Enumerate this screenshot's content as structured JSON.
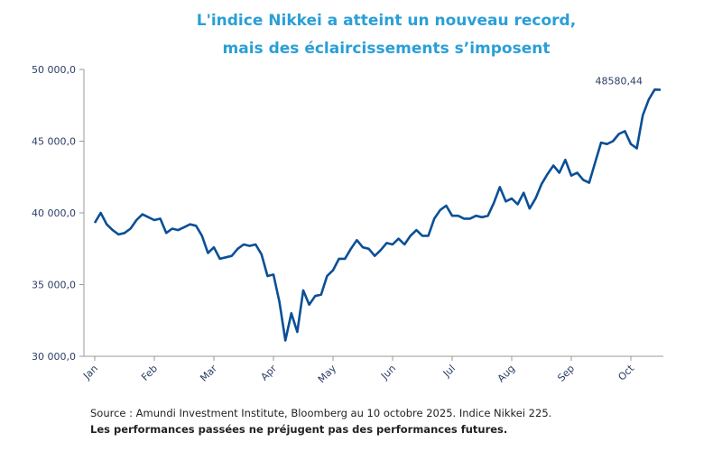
{
  "chart_data": {
    "type": "line",
    "title": [
      "L'indice Nikkei a atteint un nouveau record,",
      "mais des éclaircissements s’imposent"
    ],
    "source": "Source : Amundi Investment Institute, Bloomberg au 10 octobre 2025. Indice Nikkei 225.",
    "disclaimer": "Les performances passées ne préjugent pas des performances futures.",
    "categories": [
      "Jan",
      null,
      null,
      null,
      null,
      null,
      null,
      null,
      null,
      null,
      "Feb",
      null,
      null,
      null,
      null,
      null,
      null,
      null,
      null,
      null,
      "Mar",
      null,
      null,
      null,
      null,
      null,
      null,
      null,
      null,
      null,
      "Apr",
      null,
      null,
      null,
      null,
      null,
      null,
      null,
      null,
      null,
      "May",
      null,
      null,
      null,
      null,
      null,
      null,
      null,
      null,
      null,
      "Jun",
      null,
      null,
      null,
      null,
      null,
      null,
      null,
      null,
      null,
      "Jul",
      null,
      null,
      null,
      null,
      null,
      null,
      null,
      null,
      null,
      "Aug",
      null,
      null,
      null,
      null,
      null,
      null,
      null,
      null,
      null,
      "Sep",
      null,
      null,
      null,
      null,
      null,
      null,
      null,
      null,
      null,
      "Oct",
      null,
      null,
      null,
      null,
      null
    ],
    "series": [
      {
        "color": "#0a4f96",
        "values": [
          39300,
          40000,
          39200,
          38800,
          38500,
          38600,
          38900,
          39500,
          39900,
          39700,
          39500,
          39600,
          38600,
          38900,
          38800,
          39000,
          39200,
          39100,
          38400,
          37200,
          37600,
          36800,
          36900,
          37000,
          37500,
          37800,
          37700,
          37800,
          37100,
          35600,
          35700,
          33800,
          31100,
          33000,
          31700,
          34600,
          33600,
          34200,
          34300,
          35600,
          36000,
          36800,
          36800,
          37500,
          38100,
          37600,
          37500,
          37000,
          37400,
          37900,
          37800,
          38200,
          37800,
          38400,
          38800,
          38400,
          38400,
          39600,
          40200,
          40500,
          39800,
          39800,
          39600,
          39600,
          39800,
          39700,
          39800,
          40700,
          41800,
          40800,
          41000,
          40600,
          41400,
          40300,
          41000,
          42000,
          42700,
          43300,
          42800,
          43700,
          42600,
          42800,
          42300,
          42100,
          43500,
          44900,
          44800,
          45000,
          45500,
          45700,
          44800,
          44500,
          46800,
          47900,
          48600,
          48580.44
        ],
        "value_labels": [
          null,
          null,
          null,
          null,
          null,
          null,
          null,
          null,
          null,
          null,
          null,
          null,
          null,
          null,
          null,
          null,
          null,
          null,
          null,
          null,
          null,
          null,
          null,
          null,
          null,
          null,
          null,
          null,
          null,
          null,
          null,
          null,
          null,
          null,
          null,
          null,
          null,
          null,
          null,
          null,
          null,
          null,
          null,
          null,
          null,
          null,
          null,
          null,
          null,
          null,
          null,
          null,
          null,
          null,
          null,
          null,
          null,
          null,
          null,
          null,
          null,
          null,
          null,
          null,
          null,
          null,
          null,
          null,
          null,
          null,
          null,
          null,
          null,
          null,
          null,
          null,
          null,
          null,
          null,
          null,
          null,
          null,
          null,
          null,
          null,
          null,
          null,
          null,
          null,
          null,
          null,
          null,
          null,
          null,
          null,
          "48580,44"
        ]
      }
    ],
    "ylim": [
      30000,
      50000
    ],
    "yticks": [
      {
        "value": 30000,
        "label": "30 000,0"
      },
      {
        "value": 35000,
        "label": "35 000,0"
      },
      {
        "value": 40000,
        "label": "40 000,0"
      },
      {
        "value": 45000,
        "label": "45 000,0"
      },
      {
        "value": 50000,
        "label": "50 000,0"
      }
    ]
  }
}
